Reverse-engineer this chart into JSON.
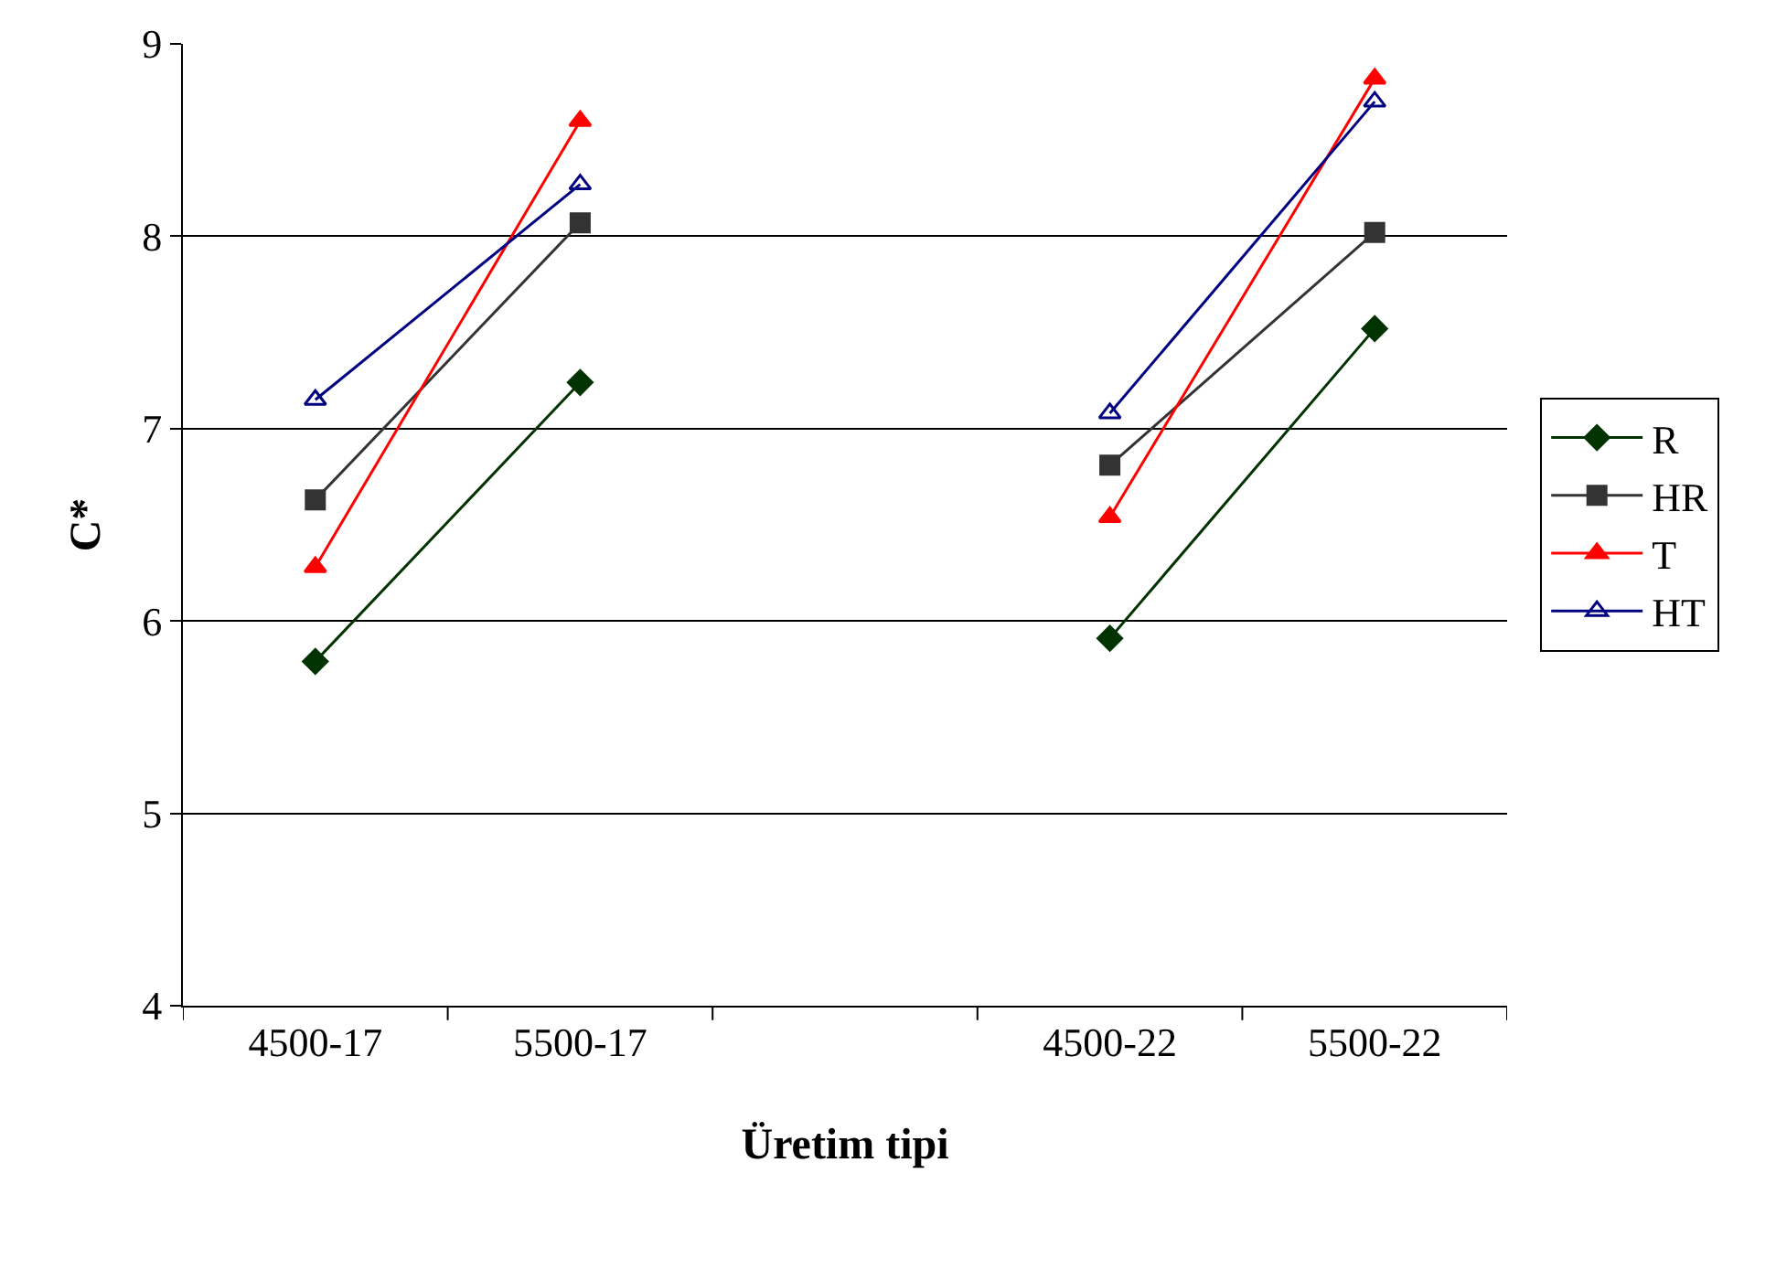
{
  "chart_data": {
    "type": "line",
    "xlabel": "Üretim tipi",
    "ylabel": "C*",
    "categories": [
      "4500-17",
      "5500-17",
      null,
      "4500-22",
      "5500-22"
    ],
    "series": [
      {
        "name": "R",
        "color": "#003300",
        "marker": "diamond",
        "values": [
          5.79,
          7.24,
          null,
          5.91,
          7.52
        ]
      },
      {
        "name": "HR",
        "color": "#333333",
        "marker": "square",
        "values": [
          6.63,
          8.07,
          null,
          6.81,
          8.02
        ]
      },
      {
        "name": "T",
        "color": "#ff0000",
        "marker": "triangle",
        "values": [
          6.28,
          8.6,
          null,
          6.54,
          8.82
        ]
      },
      {
        "name": "HT",
        "color": "#000080",
        "marker": "triangle-open",
        "values": [
          7.15,
          8.27,
          null,
          7.08,
          8.7
        ]
      }
    ],
    "ylim": [
      4,
      9
    ],
    "yticks": [
      4,
      5,
      6,
      7,
      8,
      9
    ],
    "grid": "y",
    "legend": "right",
    "line_style": "solid"
  }
}
